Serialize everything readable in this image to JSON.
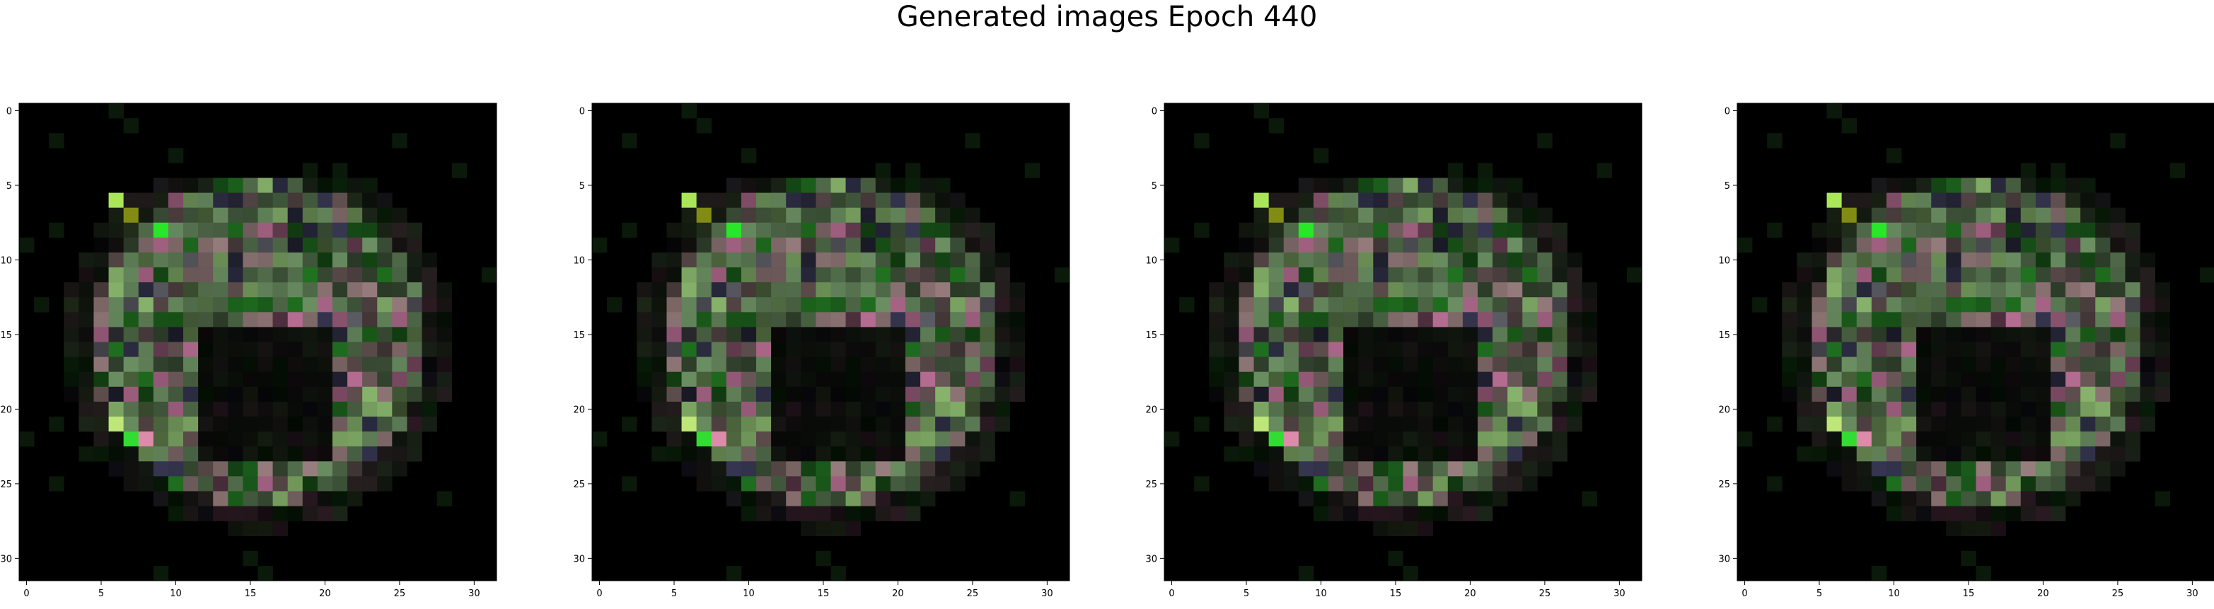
{
  "figure": {
    "title": "Generated images Epoch 440",
    "background_color": "#ffffff",
    "image_background_color": "#000000"
  },
  "panels": [
    {
      "x_ticks": [
        "0",
        "5",
        "10",
        "15",
        "20",
        "25",
        "30"
      ],
      "y_ticks": [
        "0",
        "5",
        "10",
        "15",
        "20",
        "25",
        "30"
      ],
      "xlim": [
        -0.5,
        31.5
      ],
      "ylim": [
        31.5,
        -0.5
      ],
      "grid": "32x32 pixels"
    },
    {
      "x_ticks": [
        "0",
        "5",
        "10",
        "15",
        "20",
        "25",
        "30"
      ],
      "y_ticks": [
        "0",
        "5",
        "10",
        "15",
        "20",
        "25",
        "30"
      ],
      "xlim": [
        -0.5,
        31.5
      ],
      "ylim": [
        31.5,
        -0.5
      ],
      "grid": "32x32 pixels"
    },
    {
      "x_ticks": [
        "0",
        "5",
        "10",
        "15",
        "20",
        "25",
        "30"
      ],
      "y_ticks": [
        "0",
        "5",
        "10",
        "15",
        "20",
        "25",
        "30"
      ],
      "xlim": [
        -0.5,
        31.5
      ],
      "ylim": [
        31.5,
        -0.5
      ],
      "grid": "32x32 pixels"
    },
    {
      "x_ticks": [
        "0",
        "5",
        "10",
        "15",
        "20",
        "25",
        "30"
      ],
      "y_ticks": [
        "0",
        "5",
        "10",
        "15",
        "20",
        "25",
        "30"
      ],
      "xlim": [
        -0.5,
        31.5
      ],
      "ylim": [
        31.5,
        -0.5
      ],
      "grid": "32x32 pixels"
    }
  ]
}
